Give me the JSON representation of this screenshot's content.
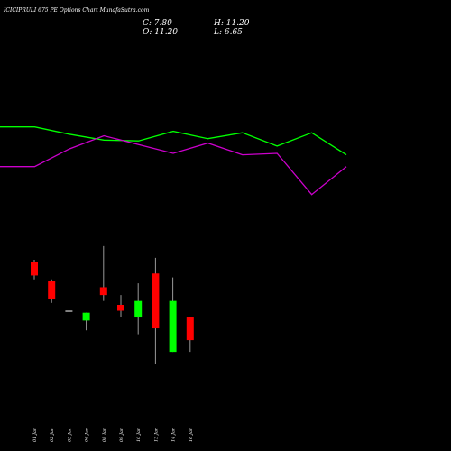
{
  "chart_data": {
    "type": "candlestick",
    "title": "ICICIPRULI 675 PE Options Chart MunafaSutra.com",
    "ohlc_labels": {
      "close": "C: 7.80",
      "high": "H: 11.20",
      "open": "O: 11.20",
      "low": "L: 6.65"
    },
    "categories": [
      "01 Jan",
      "02 Jan",
      "03 Jan",
      "06 Jan",
      "08 Jan",
      "09 Jan",
      "10 Jan",
      "13 Jan",
      "14 Jan",
      "16 Jan"
    ],
    "candles": [
      {
        "date": "01 Jan",
        "open": 11.2,
        "high": 11.3,
        "low": 10.3,
        "close": 10.5,
        "color": "#ff0000"
      },
      {
        "date": "02 Jan",
        "open": 10.2,
        "high": 10.3,
        "low": 9.1,
        "close": 9.3,
        "color": "#ff0000"
      },
      {
        "date": "03 Jan",
        "open": 8.7,
        "high": 8.7,
        "low": 8.7,
        "close": 8.7,
        "color": "#ffffff"
      },
      {
        "date": "06 Jan",
        "open": 8.6,
        "high": 8.6,
        "low": 7.7,
        "close": 8.2,
        "color": "#00ff00"
      },
      {
        "date": "08 Jan",
        "open": 9.9,
        "high": 12.0,
        "low": 9.2,
        "close": 9.5,
        "color": "#ff0000"
      },
      {
        "date": "09 Jan",
        "open": 9.0,
        "high": 9.5,
        "low": 8.4,
        "close": 8.7,
        "color": "#ff0000"
      },
      {
        "date": "10 Jan",
        "open": 8.4,
        "high": 10.1,
        "low": 7.5,
        "close": 9.2,
        "color": "#00ff00"
      },
      {
        "date": "13 Jan",
        "open": 10.6,
        "high": 11.4,
        "low": 6.0,
        "close": 7.8,
        "color": "#ff0000"
      },
      {
        "date": "14 Jan",
        "open": 9.2,
        "high": 10.4,
        "low": 6.6,
        "close": 6.6,
        "color": "#00ff00"
      },
      {
        "date": "16 Jan",
        "open": 8.4,
        "high": 8.4,
        "low": 6.6,
        "close": 7.2,
        "color": "#ff0000"
      }
    ],
    "price_range": [
      5.5,
      12.5
    ],
    "lines": [
      {
        "color": "#00ff00",
        "points": [
          [
            -1,
            64
          ],
          [
            0,
            64
          ],
          [
            1,
            59
          ],
          [
            2,
            55
          ],
          [
            3,
            54.5
          ],
          [
            4,
            61
          ],
          [
            5,
            56
          ],
          [
            6,
            60
          ],
          [
            7,
            51
          ],
          [
            8,
            60
          ],
          [
            9,
            45
          ]
        ]
      },
      {
        "color": "#cc00cc",
        "points": [
          [
            -1,
            37
          ],
          [
            0,
            37
          ],
          [
            1,
            49
          ],
          [
            2,
            58
          ],
          [
            3,
            52
          ],
          [
            4,
            46
          ],
          [
            5,
            53
          ],
          [
            6,
            45
          ],
          [
            7,
            46
          ],
          [
            8,
            18
          ],
          [
            9,
            37
          ]
        ]
      }
    ],
    "line_range": [
      0,
      100
    ],
    "grid": false
  }
}
